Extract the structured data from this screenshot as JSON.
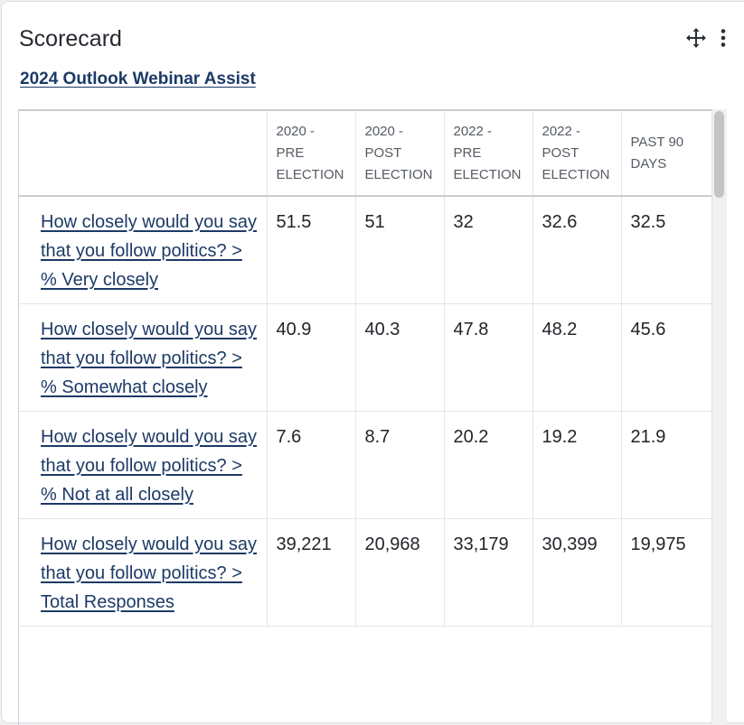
{
  "card": {
    "title": "Scorecard",
    "subtitle": "2024 Outlook Webinar Assist",
    "icons": {
      "move": "move-arrows-icon",
      "more": "more-vertical-icon"
    }
  },
  "table": {
    "columns": [
      "",
      "2020 - PRE ELECTION",
      "2020 - POST ELECTION",
      "2022 - PRE ELECTION",
      "2022 - POST ELECTION",
      "PAST 90 DAYS"
    ],
    "rows": [
      {
        "label": "How closely would you say that you follow politics? > % Very closely",
        "values": [
          "51.5",
          "51",
          "32",
          "32.6",
          "32.5"
        ]
      },
      {
        "label": "How closely would you say that you follow politics? > % Somewhat closely",
        "values": [
          "40.9",
          "40.3",
          "47.8",
          "48.2",
          "45.6"
        ]
      },
      {
        "label": "How closely would you say that you follow politics? > % Not at all closely",
        "values": [
          "7.6",
          "8.7",
          "20.2",
          "19.2",
          "21.9"
        ]
      },
      {
        "label": "How closely would you say that you follow politics? > Total Responses",
        "values": [
          "39,221",
          "20,968",
          "33,179",
          "30,399",
          "19,975"
        ]
      }
    ]
  },
  "colors": {
    "link": "#1c3a66",
    "text": "#1f2328",
    "header_text": "#555b63",
    "border": "#c9ccd1"
  }
}
